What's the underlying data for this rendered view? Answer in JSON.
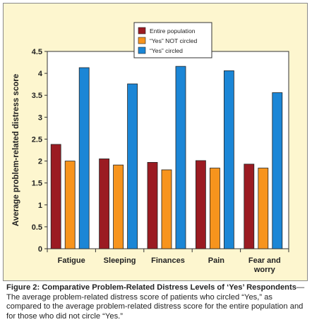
{
  "chart_data": {
    "type": "bar",
    "categories": [
      "Fatigue",
      "Sleeping",
      "Finances",
      "Pain",
      "Fear and\nworry"
    ],
    "series": [
      {
        "name": "Entire population",
        "values": [
          2.38,
          2.05,
          1.97,
          2.01,
          1.93
        ],
        "color": "#9b1b22"
      },
      {
        "name": "“Yes” NOT circled",
        "values": [
          2.0,
          1.91,
          1.8,
          1.84,
          1.84
        ],
        "color": "#f7941d"
      },
      {
        "name": "“Yes” circled",
        "values": [
          4.13,
          3.76,
          4.16,
          4.06,
          3.56
        ],
        "color": "#1b86d6"
      }
    ],
    "yticks": [
      "0",
      "0.5",
      "1",
      "1.5",
      "2",
      "2.5",
      "3",
      "3.5",
      "4",
      "4.5"
    ],
    "ylim": [
      0,
      4.5
    ],
    "ylabel": "Average problem-related distress score",
    "xlabel": "",
    "legend_position": "top-center",
    "grid": false,
    "panel_background": "#fdf6cf"
  },
  "caption": {
    "title": "Figure 2: Comparative Problem-Related Distress Levels of ‘Yes’ Respondents",
    "dash": "—",
    "text": "The average problem-related distress score of patients who circled “Yes,” as compared to the average problem-related distress score for the entire population and for those who did not circle “Yes.”"
  }
}
